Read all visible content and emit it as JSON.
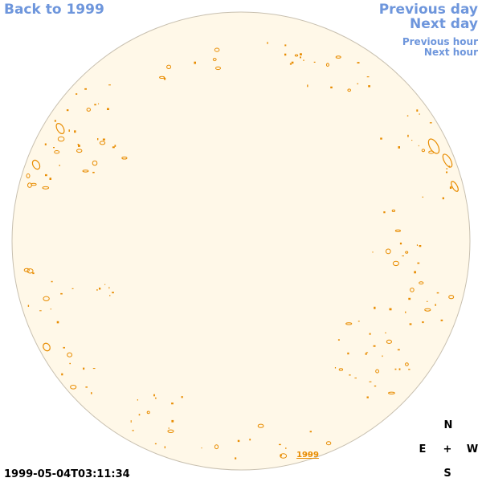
{
  "nav": {
    "back": "Back to 1999",
    "previous_day": "Previous day",
    "next_day": "Next day",
    "previous_hour": "Previous hour",
    "next_hour": "Next hour"
  },
  "disk": {
    "fill_color": "#fff8e8",
    "edge_color": "#c8c0b0",
    "contour_color": "#e88c00",
    "year_label": "1999"
  },
  "compass": {
    "north": "N",
    "south": "S",
    "east": "E",
    "west": "W",
    "center": "+"
  },
  "timestamp": "1999-05-04T03:11:34"
}
